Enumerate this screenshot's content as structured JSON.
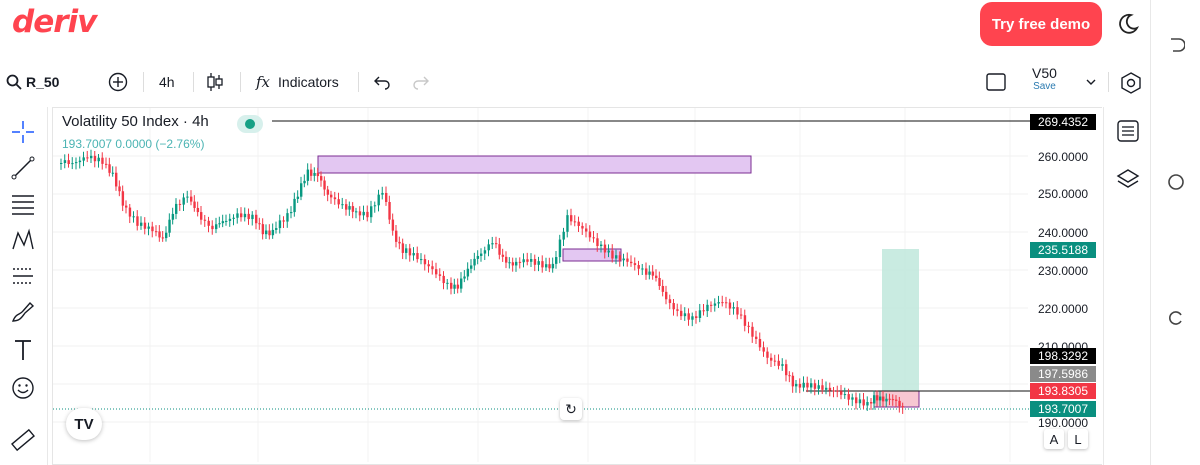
{
  "header": {
    "logo": "deriv",
    "demo_button": "Try free demo"
  },
  "toolbar": {
    "symbol": "R_50",
    "interval": "4h",
    "indicators_label": "Indicators",
    "fx_glyph": "fx",
    "account_symbol": "V50",
    "account_sub": "Save"
  },
  "chart": {
    "title": "Volatility 50 Index · 4h",
    "subtitle": "193.7007  0.0000 (−2.76%)",
    "tv_logo": "TV",
    "reset_glyph": "↻",
    "auto_btn": "A",
    "log_btn": "L",
    "colors": {
      "up": "#089981",
      "down": "#f23645",
      "rect_fill": "#e3c7f2",
      "rect_stroke": "#7b2e92",
      "target_fill": "#bfe7dc"
    }
  },
  "price_axis": {
    "ticks": [
      "260.0000",
      "250.0000",
      "240.0000",
      "230.0000",
      "220.0000",
      "210.0000",
      "190.0000"
    ],
    "labels": [
      {
        "text": "269.4352",
        "bg": "#000000"
      },
      {
        "text": "235.5188",
        "bg": "#0a8f7f"
      },
      {
        "text": "198.3292",
        "bg": "#000000"
      },
      {
        "text": "197.5986",
        "bg": "#8a8a8a"
      },
      {
        "text": "193.8305",
        "bg": "#f23645"
      },
      {
        "text": "193.7007",
        "bg": "#0a8f7f"
      }
    ]
  }
}
